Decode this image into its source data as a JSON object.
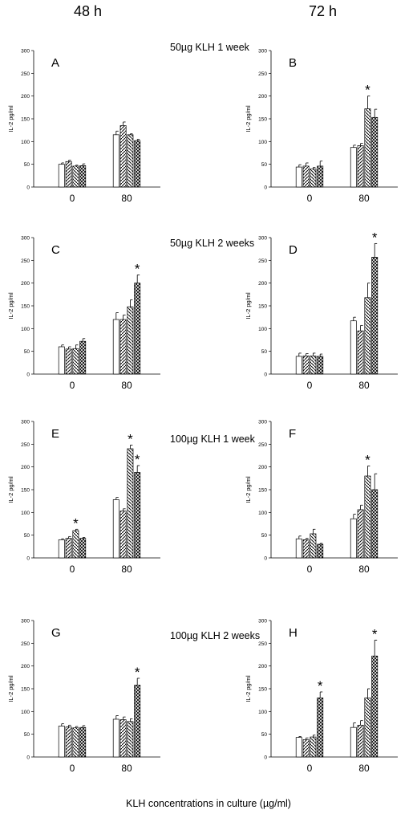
{
  "headers": {
    "left": "48 h",
    "right": "72 h"
  },
  "row_titles": [
    "50µg KLH  1 week",
    "50µg KLH  2 weeks",
    "100µg KLH  1 week",
    "100µg KLH  2 weeks"
  ],
  "x_axis_title": "KLH concentrations in culture (µg/ml)",
  "chart_data": [
    {
      "type": "bar",
      "panel": "A",
      "ylabel": "IL-2 pg/ml",
      "ylim": [
        0,
        300
      ],
      "yticks": [
        0,
        50,
        100,
        150,
        200,
        250,
        300
      ],
      "categories": [
        "0",
        "80"
      ],
      "series": [
        {
          "values": [
            50,
            115
          ],
          "errors": [
            3,
            8
          ]
        },
        {
          "values": [
            56,
            135
          ],
          "errors": [
            3,
            8
          ]
        },
        {
          "values": [
            46,
            115
          ],
          "errors": [
            2,
            2
          ]
        },
        {
          "values": [
            47,
            102
          ],
          "errors": [
            4,
            3
          ]
        }
      ],
      "significant": []
    },
    {
      "type": "bar",
      "panel": "B",
      "ylabel": "IL-2 pg/ml",
      "ylim": [
        0,
        300
      ],
      "yticks": [
        0,
        50,
        100,
        150,
        200,
        250,
        300
      ],
      "categories": [
        "0",
        "80"
      ],
      "series": [
        {
          "values": [
            44,
            87
          ],
          "errors": [
            5,
            5
          ]
        },
        {
          "values": [
            46,
            91
          ],
          "errors": [
            7,
            5
          ]
        },
        {
          "values": [
            40,
            172
          ],
          "errors": [
            3,
            28
          ]
        },
        {
          "values": [
            46,
            153
          ],
          "errors": [
            11,
            18
          ]
        }
      ],
      "significant": [
        [
          1,
          2
        ]
      ]
    },
    {
      "type": "bar",
      "panel": "C",
      "ylabel": "IL-2 pg/ml",
      "ylim": [
        0,
        300
      ],
      "yticks": [
        0,
        50,
        100,
        150,
        200,
        250,
        300
      ],
      "categories": [
        "0",
        "80"
      ],
      "series": [
        {
          "values": [
            60,
            120
          ],
          "errors": [
            4,
            15
          ]
        },
        {
          "values": [
            55,
            120
          ],
          "errors": [
            5,
            10
          ]
        },
        {
          "values": [
            56,
            148
          ],
          "errors": [
            8,
            15
          ]
        },
        {
          "values": [
            72,
            200
          ],
          "errors": [
            6,
            18
          ]
        }
      ],
      "significant": [
        [
          1,
          3
        ]
      ]
    },
    {
      "type": "bar",
      "panel": "D",
      "ylabel": "IL-2 pg/ml",
      "ylim": [
        0,
        300
      ],
      "yticks": [
        0,
        50,
        100,
        150,
        200,
        250,
        300
      ],
      "categories": [
        "0",
        "80"
      ],
      "series": [
        {
          "values": [
            39,
            117
          ],
          "errors": [
            7,
            8
          ]
        },
        {
          "values": [
            40,
            95
          ],
          "errors": [
            5,
            12
          ]
        },
        {
          "values": [
            40,
            168
          ],
          "errors": [
            6,
            32
          ]
        },
        {
          "values": [
            39,
            257
          ],
          "errors": [
            5,
            30
          ]
        }
      ],
      "significant": [
        [
          1,
          3
        ]
      ]
    },
    {
      "type": "bar",
      "panel": "E",
      "ylabel": "IL-2 pg/ml",
      "ylim": [
        0,
        300
      ],
      "yticks": [
        0,
        50,
        100,
        150,
        200,
        250,
        300
      ],
      "categories": [
        "0",
        "80"
      ],
      "series": [
        {
          "values": [
            40,
            128
          ],
          "errors": [
            2,
            5
          ]
        },
        {
          "values": [
            43,
            103
          ],
          "errors": [
            4,
            5
          ]
        },
        {
          "values": [
            60,
            240
          ],
          "errors": [
            3,
            8
          ]
        },
        {
          "values": [
            43,
            188
          ],
          "errors": [
            2,
            15
          ]
        }
      ],
      "significant": [
        [
          0,
          2
        ],
        [
          1,
          2
        ],
        [
          1,
          3
        ]
      ]
    },
    {
      "type": "bar",
      "panel": "F",
      "ylabel": "IL-2 pg/ml",
      "ylim": [
        0,
        300
      ],
      "yticks": [
        0,
        50,
        100,
        150,
        200,
        250,
        300
      ],
      "categories": [
        "0",
        "80"
      ],
      "series": [
        {
          "values": [
            42,
            86
          ],
          "errors": [
            6,
            10
          ]
        },
        {
          "values": [
            40,
            106
          ],
          "errors": [
            3,
            10
          ]
        },
        {
          "values": [
            53,
            180
          ],
          "errors": [
            10,
            22
          ]
        },
        {
          "values": [
            30,
            150
          ],
          "errors": [
            2,
            35
          ]
        }
      ],
      "significant": [
        [
          1,
          2
        ]
      ]
    },
    {
      "type": "bar",
      "panel": "G",
      "ylabel": "IL-2 pg/ml",
      "ylim": [
        0,
        300
      ],
      "yticks": [
        0,
        50,
        100,
        150,
        200,
        250,
        300
      ],
      "categories": [
        "0",
        "80"
      ],
      "series": [
        {
          "values": [
            68,
            83
          ],
          "errors": [
            5,
            8
          ]
        },
        {
          "values": [
            66,
            82
          ],
          "errors": [
            4,
            6
          ]
        },
        {
          "values": [
            64,
            78
          ],
          "errors": [
            3,
            6
          ]
        },
        {
          "values": [
            65,
            158
          ],
          "errors": [
            4,
            15
          ]
        }
      ],
      "significant": [
        [
          1,
          3
        ]
      ]
    },
    {
      "type": "bar",
      "panel": "H",
      "ylabel": "IL-2 pg/ml",
      "ylim": [
        0,
        300
      ],
      "yticks": [
        0,
        50,
        100,
        150,
        200,
        250,
        300
      ],
      "categories": [
        "0",
        "80"
      ],
      "series": [
        {
          "values": [
            43,
            65
          ],
          "errors": [
            2,
            10
          ]
        },
        {
          "values": [
            38,
            70
          ],
          "errors": [
            4,
            10
          ]
        },
        {
          "values": [
            44,
            130
          ],
          "errors": [
            4,
            20
          ]
        },
        {
          "values": [
            130,
            222
          ],
          "errors": [
            13,
            35
          ]
        }
      ],
      "significant": [
        [
          0,
          3
        ],
        [
          1,
          3
        ]
      ]
    }
  ]
}
